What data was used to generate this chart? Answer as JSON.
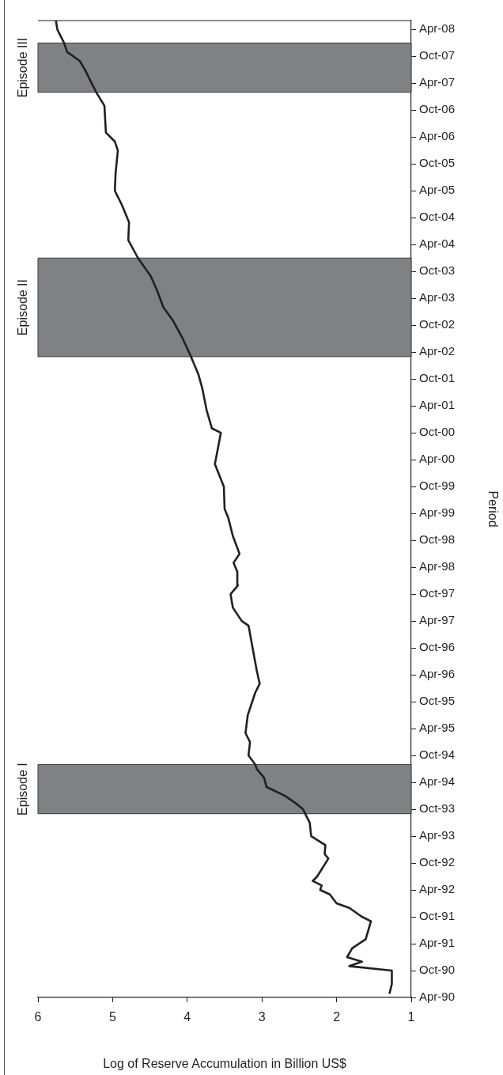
{
  "chart_data": {
    "type": "line",
    "orientation": "horizontal",
    "xlabel": "Log of Reserve Accumulation in Billion US$",
    "ylabel": "Period",
    "x": [
      "1990-05",
      "1990-07",
      "1990-10",
      "1990-11",
      "1990-12",
      "1991-01",
      "1991-03",
      "1991-05",
      "1991-09",
      "1991-10",
      "1991-12",
      "1992-01",
      "1992-03",
      "1992-04",
      "1992-05",
      "1992-06",
      "1992-07",
      "1992-11",
      "1992-12",
      "1993-02",
      "1993-04",
      "1993-07",
      "1993-10",
      "1993-11",
      "1994-01",
      "1994-03",
      "1994-05",
      "1994-07",
      "1994-08",
      "1994-10",
      "1995-01",
      "1995-03",
      "1995-07",
      "1995-12",
      "1996-02",
      "1996-05",
      "1997-03",
      "1997-04",
      "1997-07",
      "1997-10",
      "1997-12",
      "1998-03",
      "1998-05",
      "1998-07",
      "1998-11",
      "1999-03",
      "1999-05",
      "1999-10",
      "2000-03",
      "2000-10",
      "2000-11",
      "2001-03",
      "2001-08",
      "2001-11",
      "2002-03",
      "2002-07",
      "2002-11",
      "2003-02",
      "2003-06",
      "2003-09",
      "2004-01",
      "2004-05",
      "2004-09",
      "2005-01",
      "2005-04",
      "2005-08",
      "2006-01",
      "2006-03",
      "2006-05",
      "2006-11",
      "2007-02",
      "2007-07",
      "2007-09",
      "2007-11",
      "2008-01",
      "2008-04",
      "2008-06"
    ],
    "series": [
      {
        "color": "#231f20",
        "values": [
          1.29,
          1.26,
          1.26,
          1.83,
          1.66,
          1.86,
          1.79,
          1.61,
          1.54,
          1.66,
          1.83,
          2.0,
          2.09,
          2.22,
          2.2,
          2.32,
          2.26,
          2.11,
          2.16,
          2.15,
          2.34,
          2.36,
          2.45,
          2.52,
          2.69,
          2.94,
          2.97,
          3.07,
          3.09,
          3.18,
          3.16,
          3.22,
          3.19,
          3.09,
          3.03,
          3.07,
          3.18,
          3.27,
          3.39,
          3.42,
          3.32,
          3.33,
          3.38,
          3.3,
          3.39,
          3.45,
          3.5,
          3.51,
          3.63,
          3.55,
          3.67,
          3.74,
          3.8,
          3.85,
          3.95,
          4.06,
          4.19,
          4.32,
          4.41,
          4.49,
          4.66,
          4.79,
          4.78,
          4.88,
          4.97,
          4.96,
          4.93,
          4.97,
          5.09,
          5.11,
          5.22,
          5.37,
          5.44,
          5.61,
          5.65,
          5.74,
          5.76
        ]
      }
    ],
    "ylim": [
      "1990-04",
      "2008-06"
    ],
    "yticks": [
      {
        "value": "1990-04",
        "label": "Apr-90"
      },
      {
        "value": "1990-10",
        "label": "Oct-90"
      },
      {
        "value": "1991-04",
        "label": "Apr-91"
      },
      {
        "value": "1991-10",
        "label": "Oct-91"
      },
      {
        "value": "1992-04",
        "label": "Apr-92"
      },
      {
        "value": "1992-10",
        "label": "Oct-92"
      },
      {
        "value": "1993-04",
        "label": "Apr-93"
      },
      {
        "value": "1993-10",
        "label": "Oct-93"
      },
      {
        "value": "1994-04",
        "label": "Apr-94"
      },
      {
        "value": "1994-10",
        "label": "Oct-94"
      },
      {
        "value": "1995-04",
        "label": "Apr-95"
      },
      {
        "value": "1995-10",
        "label": "Oct-95"
      },
      {
        "value": "1996-04",
        "label": "Apr-96"
      },
      {
        "value": "1996-10",
        "label": "Oct-96"
      },
      {
        "value": "1997-04",
        "label": "Apr-97"
      },
      {
        "value": "1997-10",
        "label": "Oct-97"
      },
      {
        "value": "1998-04",
        "label": "Apr-98"
      },
      {
        "value": "1998-10",
        "label": "Oct-98"
      },
      {
        "value": "1999-04",
        "label": "Apr-99"
      },
      {
        "value": "1999-10",
        "label": "Oct-99"
      },
      {
        "value": "2000-04",
        "label": "Apr-00"
      },
      {
        "value": "2000-10",
        "label": "Oct-00"
      },
      {
        "value": "2001-04",
        "label": "Apr-01"
      },
      {
        "value": "2001-10",
        "label": "Oct-01"
      },
      {
        "value": "2002-04",
        "label": "Apr-02"
      },
      {
        "value": "2002-10",
        "label": "Oct-02"
      },
      {
        "value": "2003-04",
        "label": "Apr-03"
      },
      {
        "value": "2003-10",
        "label": "Oct-03"
      },
      {
        "value": "2004-04",
        "label": "Apr-04"
      },
      {
        "value": "2004-10",
        "label": "Oct-04"
      },
      {
        "value": "2005-04",
        "label": "Apr-05"
      },
      {
        "value": "2005-10",
        "label": "Oct-05"
      },
      {
        "value": "2006-04",
        "label": "Apr-06"
      },
      {
        "value": "2006-10",
        "label": "Oct-06"
      },
      {
        "value": "2007-04",
        "label": "Apr-07"
      },
      {
        "value": "2007-10",
        "label": "Oct-07"
      },
      {
        "value": "2008-04",
        "label": "Apr-08"
      }
    ],
    "xlim": [
      6,
      1
    ],
    "xticks": [
      1,
      2,
      3,
      4,
      5,
      6
    ],
    "bands": [
      {
        "axis": "y",
        "from": "1993-09",
        "to": "1994-08",
        "label": "Episode I",
        "color": "#808184"
      },
      {
        "axis": "y",
        "from": "2002-03",
        "to": "2004-01",
        "label": "Episode II",
        "color": "#808184"
      },
      {
        "axis": "y",
        "from": "2007-02",
        "to": "2008-01",
        "label": "Episode III",
        "color": "#808184"
      }
    ],
    "grid": false,
    "legend": false,
    "marker": "none",
    "line_style": "solid"
  }
}
